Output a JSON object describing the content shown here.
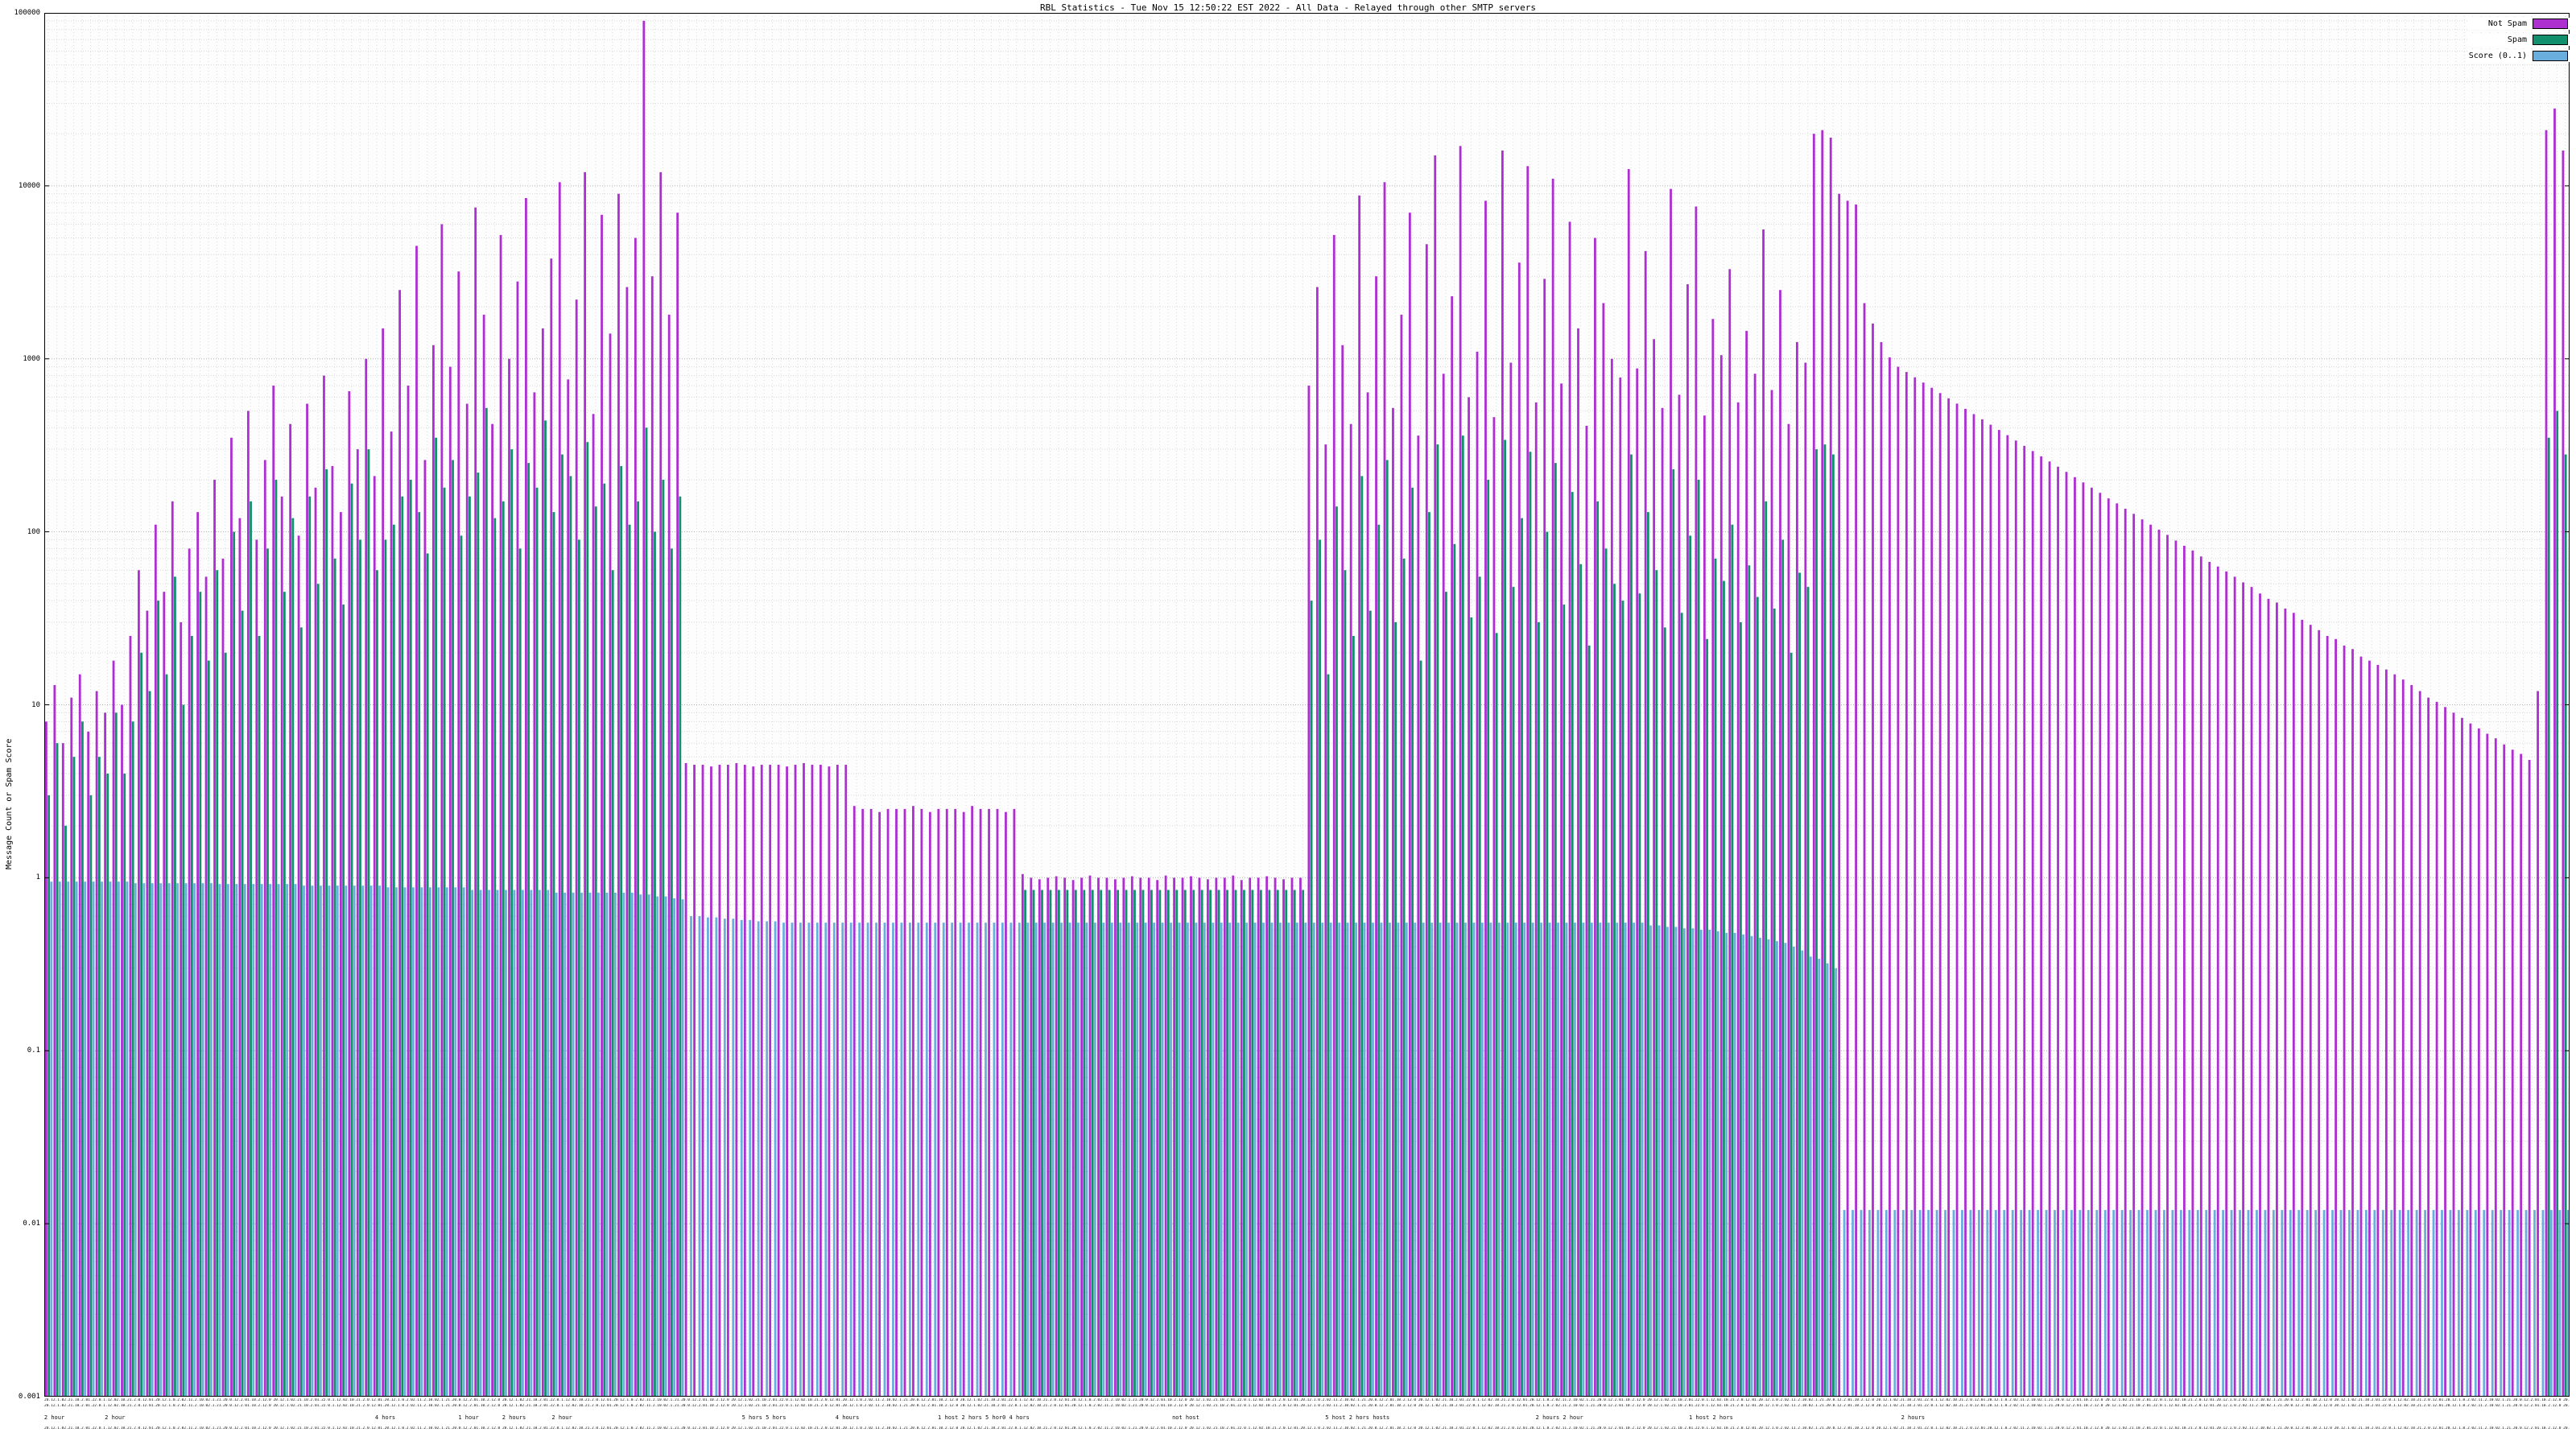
{
  "title": "RBL Statistics - Tue Nov 15 12:50:22 EST 2022 - All Data - Relayed through other SMTP servers",
  "y_axis": {
    "label": "Message Count or Spam Score",
    "ticks": [
      "100000",
      "10000",
      "1000",
      "100",
      "10",
      "1",
      "0.1",
      "0.01",
      "0.001"
    ]
  },
  "legend": [
    {
      "label": "Not Spam",
      "color": "#ad2fd0"
    },
    {
      "label": "Spam",
      "color": "#12906e"
    },
    {
      "label": "Score (0..1)",
      "color": "#6aaede"
    }
  ],
  "x_axis": {
    "texture": "20.12.1.02.21.10.2.01.22.0.1.12.02.10.21.2.0.12.01.20.12.1.0.2.02.11.2.10.02.1.21.20.0.12.2.01.10.2.12.0 ",
    "sparse": [
      {
        "text": "2 hour",
        "pos": 0.004
      },
      {
        "text": "2 hour",
        "pos": 0.028
      },
      {
        "text": "4 hors",
        "pos": 0.135
      },
      {
        "text": "1 hour",
        "pos": 0.168
      },
      {
        "text": "2 hours",
        "pos": 0.186
      },
      {
        "text": "2 hour",
        "pos": 0.205
      },
      {
        "text": "5 hors 5 hors",
        "pos": 0.285
      },
      {
        "text": "4 hours",
        "pos": 0.318
      },
      {
        "text": "1 host 2 hors 5 hor0 4 hors",
        "pos": 0.372
      },
      {
        "text": "not host",
        "pos": 0.452
      },
      {
        "text": "5 host 2 hors hosts",
        "pos": 0.52
      },
      {
        "text": "2 hours 2 hour",
        "pos": 0.6
      },
      {
        "text": "1 host 2 hors",
        "pos": 0.66
      },
      {
        "text": "2 hours",
        "pos": 0.74
      }
    ]
  },
  "chart_data": {
    "type": "bar",
    "scale": "log",
    "title": "RBL Statistics - Tue Nov 15 12:50:22 EST 2022 - All Data - Relayed through other SMTP servers",
    "xlabel": "",
    "ylabel": "Message Count or Spam Score",
    "ylim": [
      0.001,
      100000
    ],
    "grid": true,
    "legend_position": "top-right",
    "series": [
      {
        "name": "Not Spam",
        "color": "#ad2fd0",
        "values": [
          8,
          13,
          6,
          11,
          15,
          7,
          12,
          9,
          18,
          10,
          25,
          60,
          35,
          110,
          45,
          150,
          30,
          80,
          130,
          55,
          200,
          70,
          350,
          120,
          500,
          90,
          260,
          700,
          160,
          420,
          95,
          550,
          180,
          800,
          240,
          130,
          650,
          300,
          1000,
          210,
          1500,
          380,
          2500,
          700,
          4500,
          260,
          1200,
          6000,
          900,
          3200,
          550,
          7500,
          1800,
          420,
          5200,
          1000,
          2800,
          8500,
          640,
          1500,
          3800,
          10500,
          760,
          2200,
          12000,
          480,
          6800,
          1400,
          9000,
          2600,
          5000,
          90000,
          3000,
          12000,
          1800,
          7000,
          4.6,
          4.5,
          4.5,
          4.4,
          4.5,
          4.5,
          4.6,
          4.5,
          4.4,
          4.5,
          4.5,
          4.5,
          4.4,
          4.5,
          4.6,
          4.5,
          4.5,
          4.4,
          4.5,
          4.5,
          2.6,
          2.5,
          2.5,
          2.4,
          2.5,
          2.5,
          2.5,
          2.6,
          2.5,
          2.4,
          2.5,
          2.5,
          2.5,
          2.4,
          2.6,
          2.5,
          2.5,
          2.5,
          2.4,
          2.5,
          1.05,
          1,
          0.98,
          1,
          1.02,
          1,
          0.97,
          1,
          1.03,
          1,
          1,
          0.98,
          1,
          1.02,
          1,
          1,
          0.97,
          1.03,
          1,
          1,
          1.02,
          1,
          0.98,
          1,
          1,
          1.03,
          0.97,
          1,
          1,
          1.02,
          1,
          0.98,
          1,
          1,
          700,
          2600,
          320,
          5200,
          1200,
          420,
          8800,
          640,
          3000,
          10500,
          520,
          1800,
          7000,
          360,
          4600,
          15000,
          820,
          2300,
          17000,
          600,
          1100,
          8200,
          460,
          16000,
          950,
          3600,
          13000,
          560,
          2900,
          11000,
          720,
          6200,
          1500,
          410,
          5000,
          2100,
          1000,
          780,
          12500,
          880,
          4200,
          1300,
          520,
          9600,
          620,
          2700,
          7600,
          470,
          1700,
          1050,
          3300,
          560,
          1450,
          820,
          5600,
          660,
          2500,
          420,
          1250,
          950,
          20000,
          21000,
          19000,
          9000,
          8200,
          7800,
          2100,
          1600,
          1250,
          1020,
          900,
          839,
          782,
          729,
          680,
          634,
          591,
          551,
          514,
          479,
          447,
          416,
          388,
          362,
          337,
          314,
          293,
          273,
          255,
          238,
          222,
          207,
          193,
          180,
          168,
          156,
          146,
          136,
          127,
          118,
          110,
          103,
          96,
          89,
          83,
          78,
          72,
          67,
          63,
          59,
          55,
          51,
          48,
          44,
          41,
          39,
          36,
          34,
          31,
          29,
          27,
          25,
          24,
          22,
          21,
          19,
          18,
          17,
          16,
          15,
          14,
          13,
          12,
          11,
          10.4,
          9.7,
          9,
          8.4,
          7.8,
          7.3,
          6.8,
          6.4,
          5.9,
          5.5,
          5.2,
          4.8,
          12,
          21000,
          28000,
          16000
        ]
      },
      {
        "name": "Spam",
        "color": "#12906e",
        "values": [
          3,
          6,
          2,
          5,
          8,
          3,
          5,
          4,
          9,
          4,
          8,
          20,
          12,
          40,
          15,
          55,
          10,
          25,
          45,
          18,
          60,
          20,
          100,
          35,
          150,
          25,
          80,
          200,
          45,
          120,
          28,
          160,
          50,
          230,
          70,
          38,
          190,
          90,
          300,
          60,
          90,
          110,
          160,
          200,
          130,
          75,
          350,
          180,
          260,
          95,
          160,
          220,
          520,
          120,
          150,
          300,
          80,
          250,
          180,
          440,
          130,
          280,
          210,
          90,
          330,
          140,
          190,
          60,
          240,
          110,
          150,
          400,
          100,
          200,
          80,
          160,
          0,
          0,
          0,
          0,
          0,
          0,
          0,
          0,
          0,
          0,
          0,
          0,
          0,
          0,
          0,
          0,
          0,
          0,
          0,
          0,
          0,
          0,
          0,
          0,
          0,
          0,
          0,
          0,
          0,
          0,
          0,
          0,
          0,
          0,
          0,
          0,
          0,
          0,
          0,
          0,
          0.85,
          0.85,
          0.85,
          0.85,
          0.85,
          0.85,
          0.85,
          0.85,
          0.85,
          0.85,
          0.85,
          0.85,
          0.85,
          0.85,
          0.85,
          0.85,
          0.85,
          0.85,
          0.85,
          0.85,
          0.85,
          0.85,
          0.85,
          0.85,
          0.85,
          0.85,
          0.85,
          0.85,
          0.85,
          0.85,
          0.85,
          0.85,
          0.85,
          0.85,
          40,
          90,
          15,
          140,
          60,
          25,
          210,
          35,
          110,
          260,
          30,
          70,
          180,
          18,
          130,
          320,
          45,
          85,
          360,
          32,
          55,
          200,
          26,
          340,
          48,
          120,
          290,
          30,
          100,
          250,
          38,
          170,
          65,
          22,
          150,
          80,
          50,
          40,
          280,
          44,
          130,
          60,
          28,
          230,
          34,
          95,
          200,
          24,
          70,
          52,
          110,
          30,
          64,
          42,
          150,
          36,
          90,
          20,
          58,
          48,
          300,
          320,
          280,
          0,
          0,
          0,
          0,
          0,
          0,
          0,
          0,
          0,
          0,
          0,
          0,
          0,
          0,
          0,
          0,
          0,
          0,
          0,
          0,
          0,
          0,
          0,
          0,
          0,
          0,
          0,
          0,
          0,
          0,
          0,
          0,
          0,
          0,
          0,
          0,
          0,
          0,
          0,
          0,
          0,
          0,
          0,
          0,
          0,
          0,
          0,
          0,
          0,
          0,
          0,
          0,
          0,
          0,
          0,
          0,
          0,
          0,
          0,
          0,
          0,
          0,
          0,
          0,
          0,
          0,
          0,
          0,
          0,
          0,
          0,
          0,
          0,
          0,
          0,
          0,
          0,
          0,
          0,
          0,
          0,
          0,
          0,
          0,
          350,
          500,
          280
        ]
      },
      {
        "name": "Score (0..1)",
        "color": "#6aaede",
        "values": [
          0.95,
          0.95,
          0.95,
          0.95,
          0.95,
          0.95,
          0.95,
          0.95,
          0.95,
          0.95,
          0.93,
          0.93,
          0.93,
          0.93,
          0.93,
          0.93,
          0.93,
          0.93,
          0.93,
          0.93,
          0.92,
          0.92,
          0.92,
          0.92,
          0.92,
          0.92,
          0.92,
          0.92,
          0.92,
          0.92,
          0.9,
          0.9,
          0.9,
          0.9,
          0.9,
          0.9,
          0.9,
          0.9,
          0.9,
          0.9,
          0.88,
          0.88,
          0.88,
          0.88,
          0.88,
          0.88,
          0.88,
          0.88,
          0.88,
          0.88,
          0.85,
          0.85,
          0.85,
          0.85,
          0.85,
          0.85,
          0.85,
          0.85,
          0.85,
          0.85,
          0.82,
          0.82,
          0.82,
          0.82,
          0.82,
          0.82,
          0.82,
          0.82,
          0.82,
          0.82,
          0.8,
          0.8,
          0.78,
          0.78,
          0.76,
          0.75,
          0.6,
          0.6,
          0.59,
          0.59,
          0.58,
          0.58,
          0.57,
          0.57,
          0.56,
          0.56,
          0.56,
          0.55,
          0.55,
          0.55,
          0.55,
          0.55,
          0.55,
          0.55,
          0.55,
          0.55,
          0.55,
          0.55,
          0.55,
          0.55,
          0.55,
          0.55,
          0.55,
          0.55,
          0.55,
          0.55,
          0.55,
          0.55,
          0.55,
          0.55,
          0.55,
          0.55,
          0.55,
          0.55,
          0.55,
          0.55,
          0.55,
          0.55,
          0.55,
          0.55,
          0.55,
          0.55,
          0.55,
          0.55,
          0.55,
          0.55,
          0.55,
          0.55,
          0.55,
          0.55,
          0.55,
          0.55,
          0.55,
          0.55,
          0.55,
          0.55,
          0.55,
          0.55,
          0.55,
          0.55,
          0.55,
          0.55,
          0.55,
          0.55,
          0.55,
          0.55,
          0.55,
          0.55,
          0.55,
          0.55,
          0.55,
          0.55,
          0.55,
          0.55,
          0.55,
          0.55,
          0.55,
          0.55,
          0.55,
          0.55,
          0.55,
          0.55,
          0.55,
          0.55,
          0.55,
          0.55,
          0.55,
          0.55,
          0.55,
          0.55,
          0.55,
          0.55,
          0.55,
          0.55,
          0.55,
          0.55,
          0.55,
          0.55,
          0.55,
          0.55,
          0.55,
          0.55,
          0.55,
          0.55,
          0.55,
          0.55,
          0.55,
          0.55,
          0.55,
          0.55,
          0.53,
          0.53,
          0.52,
          0.52,
          0.51,
          0.51,
          0.5,
          0.5,
          0.49,
          0.48,
          0.48,
          0.47,
          0.46,
          0.45,
          0.44,
          0.43,
          0.42,
          0.4,
          0.38,
          0.35,
          0.34,
          0.32,
          0.3,
          0.012,
          0.012,
          0.012,
          0.012,
          0.012,
          0.012,
          0.012,
          0.012,
          0.012,
          0.012,
          0.012,
          0.012,
          0.012,
          0.012,
          0.012,
          0.012,
          0.012,
          0.012,
          0.012,
          0.012,
          0.012,
          0.012,
          0.012,
          0.012,
          0.012,
          0.012,
          0.012,
          0.012,
          0.012,
          0.012,
          0.012,
          0.012,
          0.012,
          0.012,
          0.012,
          0.012,
          0.012,
          0.012,
          0.012,
          0.012,
          0.012,
          0.012,
          0.012,
          0.012,
          0.012,
          0.012,
          0.012,
          0.012,
          0.012,
          0.012,
          0.012,
          0.012,
          0.012,
          0.012,
          0.012,
          0.012,
          0.012,
          0.012,
          0.012,
          0.012,
          0.012,
          0.012,
          0.012,
          0.012,
          0.012,
          0.012,
          0.012,
          0.012,
          0.012,
          0.012,
          0.012,
          0.012,
          0.012,
          0.012,
          0.012,
          0.012,
          0.012,
          0.012,
          0.012,
          0.012,
          0.012,
          0.012,
          0.012,
          0.012,
          0.012,
          0.012,
          0.012
        ]
      }
    ]
  }
}
